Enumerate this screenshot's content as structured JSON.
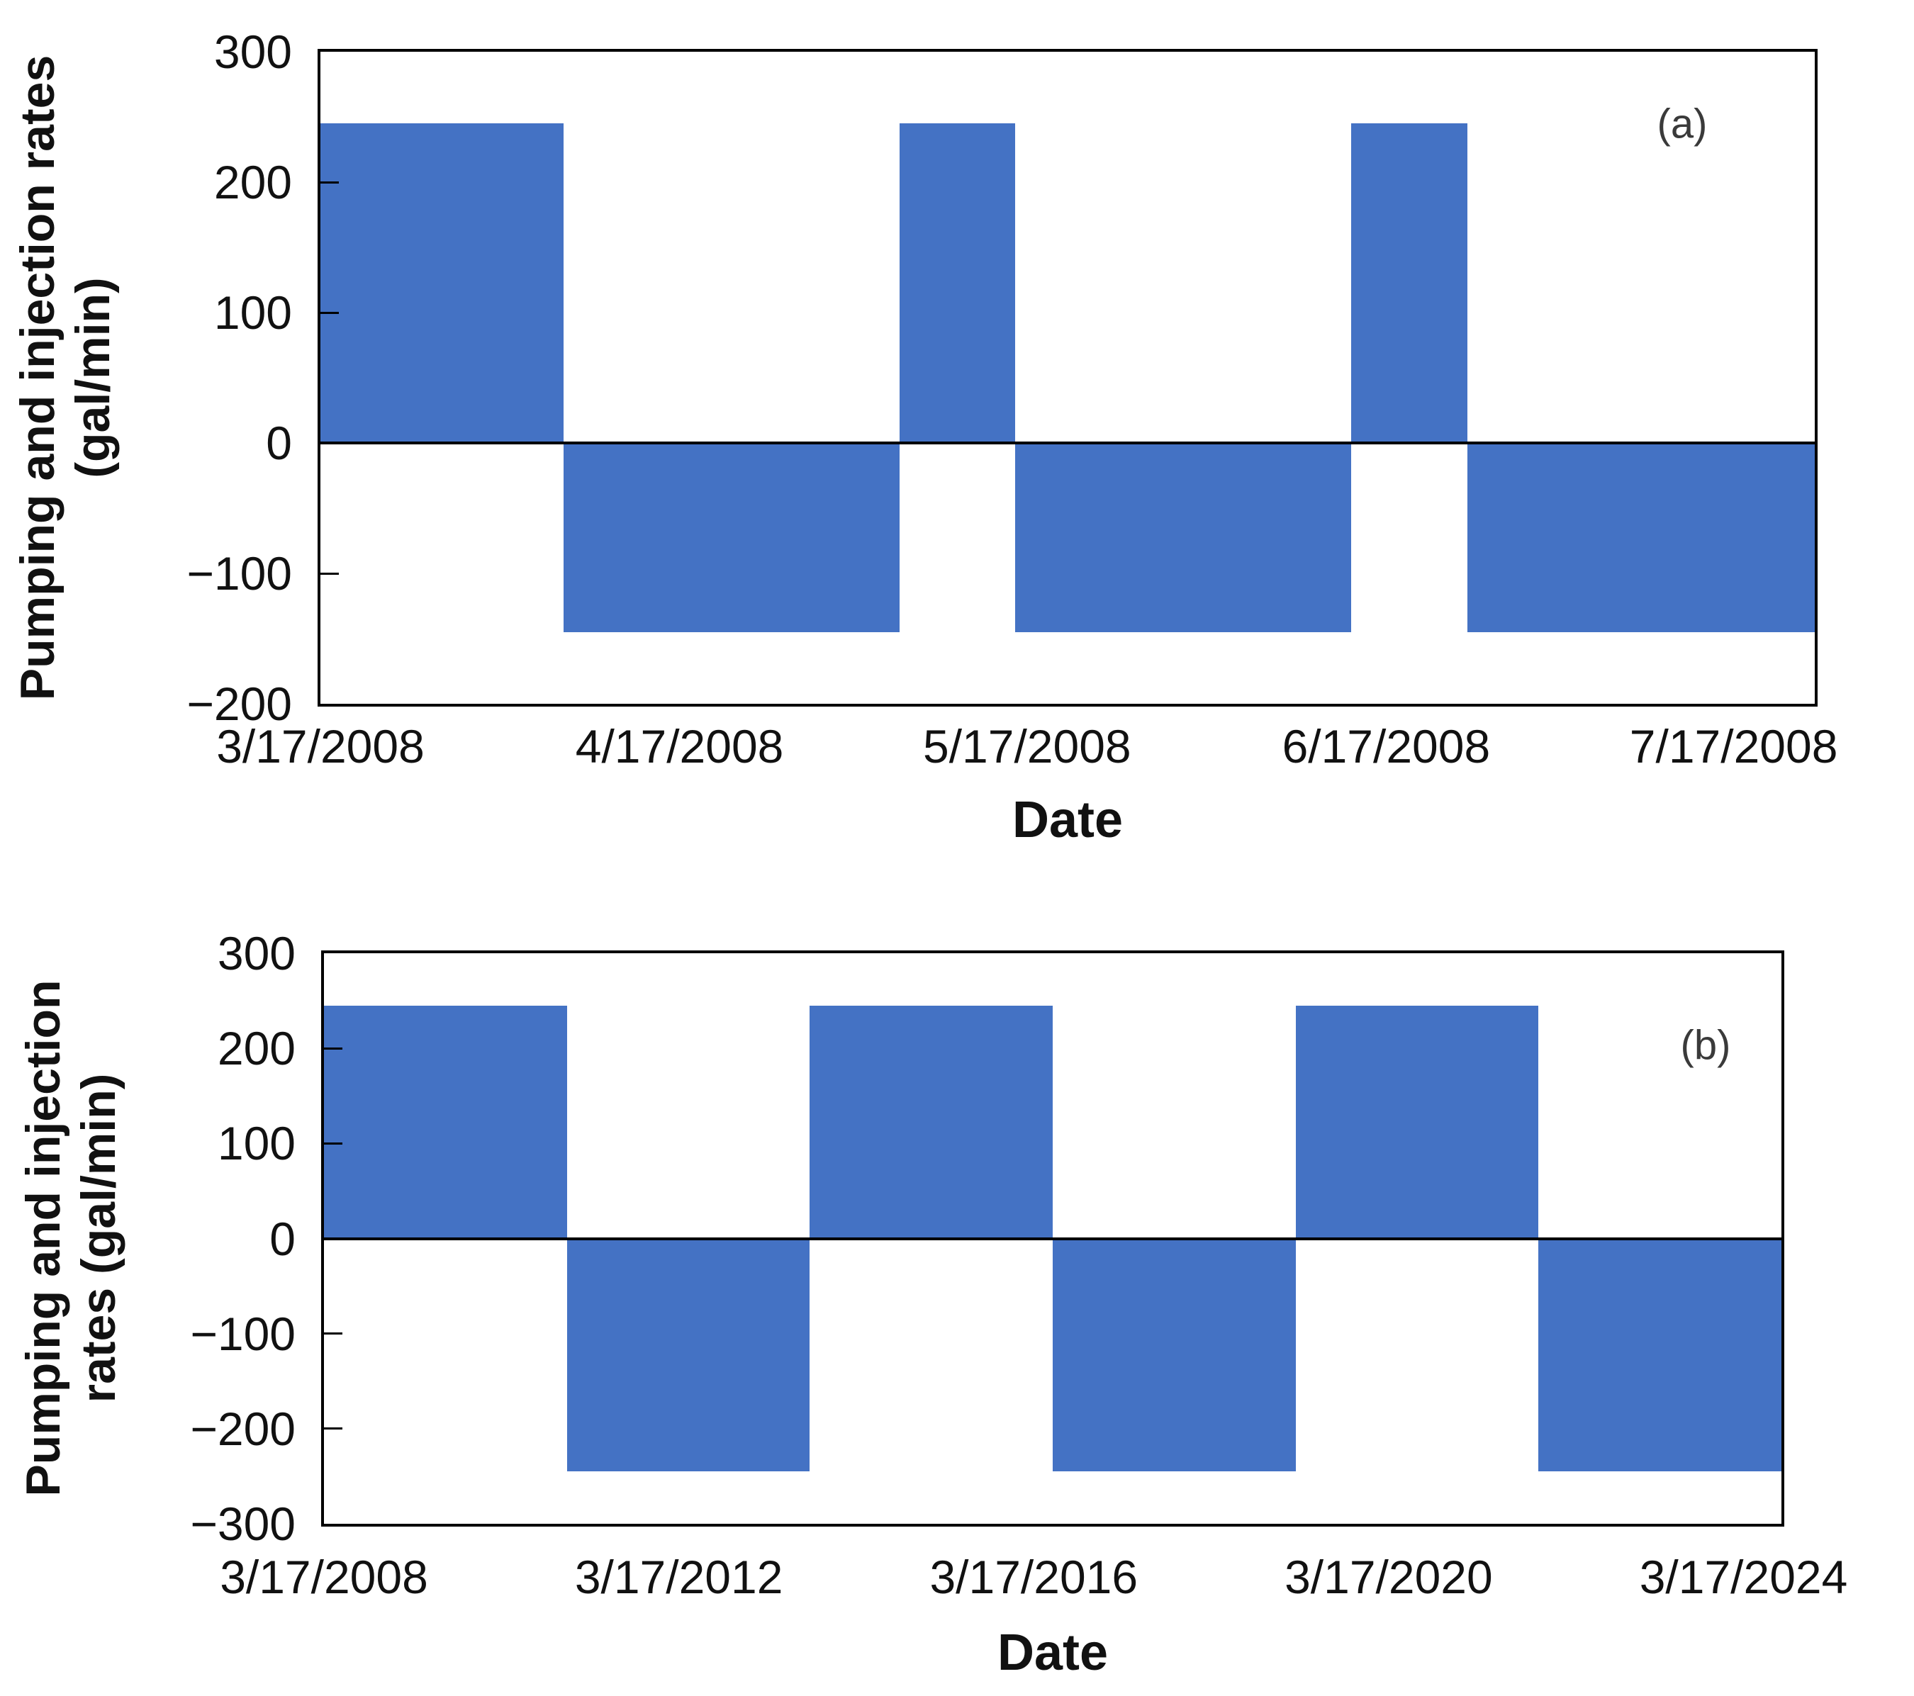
{
  "figure": {
    "background": "#ffffff",
    "bar_color": "#4472C4",
    "axis_color": "#000000",
    "text_color": "#111111"
  },
  "chart_data": [
    {
      "panel": "a",
      "type": "step-bar",
      "panel_label": "(a)",
      "xlabel": "Date",
      "ylabel_lines": [
        "Pumping and injection rates",
        "(gal/min)"
      ],
      "ylim": [
        -200,
        300
      ],
      "yticks": [
        {
          "value": 300,
          "label": "300"
        },
        {
          "value": 200,
          "label": "200"
        },
        {
          "value": 100,
          "label": "100"
        },
        {
          "value": 0,
          "label": "0"
        },
        {
          "value": -100,
          "label": "−100"
        },
        {
          "value": -200,
          "label": "−200"
        }
      ],
      "x_start_date": "3/17/2008",
      "x_total_days": 129,
      "xticks": [
        {
          "day": 0,
          "label": "3/17/2008"
        },
        {
          "day": 31,
          "label": "4/17/2008"
        },
        {
          "day": 61,
          "label": "5/17/2008"
        },
        {
          "day": 92,
          "label": "6/17/2008"
        },
        {
          "day": 122,
          "label": "7/17/2008"
        }
      ],
      "segments": [
        {
          "start_day": 0,
          "end_day": 21,
          "value": 245
        },
        {
          "start_day": 21,
          "end_day": 50,
          "value": -145
        },
        {
          "start_day": 50,
          "end_day": 60,
          "value": 245
        },
        {
          "start_day": 60,
          "end_day": 89,
          "value": -145
        },
        {
          "start_day": 89,
          "end_day": 99,
          "value": 245
        },
        {
          "start_day": 99,
          "end_day": 129,
          "value": -145
        }
      ],
      "grid": false,
      "legend": false
    },
    {
      "panel": "b",
      "type": "step-bar",
      "panel_label": "(b)",
      "xlabel": "Date",
      "ylabel_lines": [
        "Pumping and injection",
        "rates (gal/min)"
      ],
      "ylim": [
        -300,
        300
      ],
      "yticks": [
        {
          "value": 300,
          "label": "300"
        },
        {
          "value": 200,
          "label": "200"
        },
        {
          "value": 100,
          "label": "100"
        },
        {
          "value": 0,
          "label": "0"
        },
        {
          "value": -100,
          "label": "−100"
        },
        {
          "value": -200,
          "label": "−200"
        },
        {
          "value": -300,
          "label": "−300"
        }
      ],
      "x_start_date": "3/17/2008",
      "x_total_days": 6000,
      "xticks": [
        {
          "day": 0,
          "label": "3/17/2008"
        },
        {
          "day": 1461,
          "label": "3/17/2012"
        },
        {
          "day": 2922,
          "label": "3/17/2016"
        },
        {
          "day": 4383,
          "label": "3/17/2020"
        },
        {
          "day": 5844,
          "label": "3/17/2024"
        }
      ],
      "segments": [
        {
          "start_day": 0,
          "end_day": 1000,
          "value": 245
        },
        {
          "start_day": 1000,
          "end_day": 2000,
          "value": -245
        },
        {
          "start_day": 2000,
          "end_day": 3000,
          "value": 245
        },
        {
          "start_day": 3000,
          "end_day": 4000,
          "value": -245
        },
        {
          "start_day": 4000,
          "end_day": 5000,
          "value": 245
        },
        {
          "start_day": 5000,
          "end_day": 6000,
          "value": -245
        }
      ],
      "grid": false,
      "legend": false
    }
  ]
}
